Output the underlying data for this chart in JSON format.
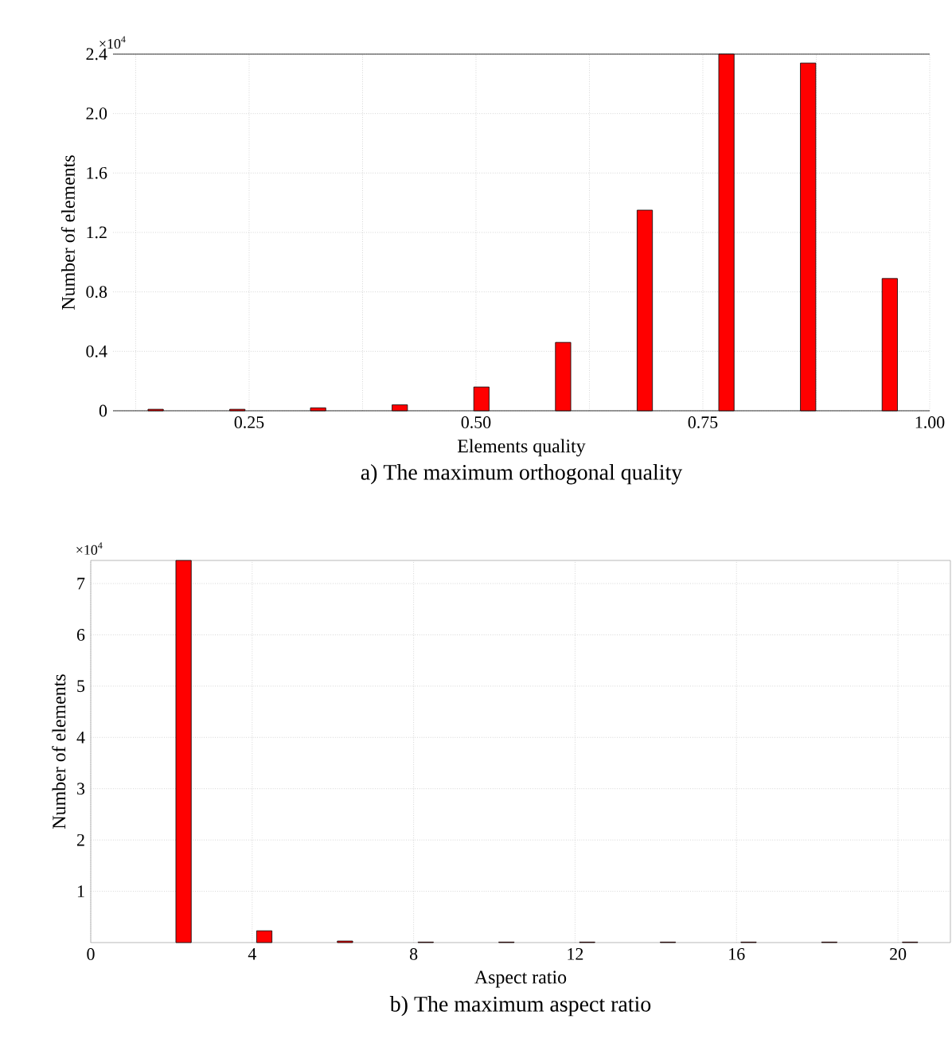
{
  "chart_data": [
    {
      "type": "bar",
      "title": "a) The maximum orthogonal quality",
      "xlabel": "Elements  quality",
      "ylabel": "Number of elements",
      "x": [
        0.147,
        0.237,
        0.326,
        0.416,
        0.506,
        0.596,
        0.686,
        0.776,
        0.866,
        0.956
      ],
      "values": [
        0.01,
        0.01,
        0.02,
        0.04,
        0.16,
        0.46,
        1.35,
        2.4,
        2.34,
        0.89
      ],
      "color": "#ff0000",
      "xlim": [
        0.1,
        1.0
      ],
      "xticks": [
        {
          "value": 0.125,
          "label": null
        },
        {
          "value": 0.25,
          "label": "0.25"
        },
        {
          "value": 0.375,
          "label": null
        },
        {
          "value": 0.5,
          "label": "0.50"
        },
        {
          "value": 0.625,
          "label": null
        },
        {
          "value": 0.75,
          "label": "0.75"
        },
        {
          "value": 0.875,
          "label": null
        },
        {
          "value": 1.0,
          "label": "1.00"
        }
      ],
      "ylim": [
        0,
        2.4
      ],
      "yticks": [
        0,
        0.4,
        0.8,
        1.2,
        1.6,
        {
          "value": 2.0,
          "label": "2.0"
        },
        2.4
      ],
      "grid": true,
      "annotations": [
        "×10$^{4}$"
      ]
    },
    {
      "type": "bar",
      "title": "b) The maximum aspect ratio",
      "xlabel": "Aspect ratio",
      "ylabel": "Number of elements",
      "x": [
        2.3,
        4.3,
        6.3,
        8.3,
        10.3,
        12.3,
        14.3,
        16.3,
        18.3,
        20.3
      ],
      "values": [
        7.45,
        0.23,
        0.03,
        0.01,
        0.01,
        0.01,
        0.01,
        0.01,
        0.01,
        0.01
      ],
      "color": "#ff0000",
      "xlim": [
        0,
        21.3
      ],
      "xticks": [
        0,
        4,
        8,
        12,
        16,
        20
      ],
      "ylim": [
        0,
        7.45
      ],
      "yticks": [
        1,
        2,
        3,
        4,
        5,
        6,
        7
      ],
      "grid": true,
      "annotations": [
        "×10$^{4}$"
      ]
    }
  ]
}
